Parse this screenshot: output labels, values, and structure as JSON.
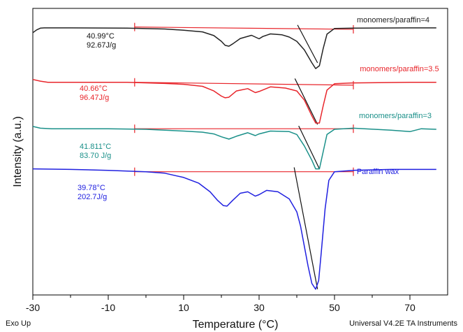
{
  "chart_data": {
    "type": "line",
    "title": "",
    "xlabel": "Temperature (°C)",
    "ylabel": "Intensity (a.u.)",
    "xlim": [
      -30,
      80
    ],
    "x_ticks": [
      -30,
      -10,
      10,
      30,
      50,
      70
    ],
    "grid": false,
    "legend": "labels placed next to each curve",
    "footer_left": "Exo Up",
    "footer_right": "Universal V4.2E TA Instruments",
    "series": [
      {
        "name": "monomers/paraffin=4",
        "color": "#222222",
        "baseline_color": "#e8252b",
        "annotation": {
          "temp": "40.99°C",
          "enthalpy": "92.67J/g",
          "temp_color": "#111111",
          "enthalpy_color": "#111111"
        },
        "points": [
          [
            -30,
            0.915
          ],
          [
            -29,
            0.925
          ],
          [
            -28,
            0.931
          ],
          [
            -27,
            0.932
          ],
          [
            -20,
            0.932
          ],
          [
            -5,
            0.931
          ],
          [
            5,
            0.928
          ],
          [
            10,
            0.924
          ],
          [
            15,
            0.918
          ],
          [
            18,
            0.905
          ],
          [
            20,
            0.885
          ],
          [
            21,
            0.871
          ],
          [
            22,
            0.868
          ],
          [
            23,
            0.876
          ],
          [
            25,
            0.895
          ],
          [
            28,
            0.906
          ],
          [
            30,
            0.894
          ],
          [
            31,
            0.902
          ],
          [
            33,
            0.911
          ],
          [
            36,
            0.908
          ],
          [
            38,
            0.9
          ],
          [
            40,
            0.885
          ],
          [
            42,
            0.855
          ],
          [
            44,
            0.81
          ],
          [
            45,
            0.79
          ],
          [
            46,
            0.8
          ],
          [
            47,
            0.86
          ],
          [
            48,
            0.91
          ],
          [
            50,
            0.93
          ],
          [
            55,
            0.931
          ],
          [
            70,
            0.932
          ],
          [
            77,
            0.932
          ]
        ],
        "baseline_points": [
          [
            -3,
            0.935
          ],
          [
            55,
            0.927
          ]
        ],
        "tangent_points": [
          [
            40.2,
            0.942
          ],
          [
            45.5,
            0.81
          ]
        ]
      },
      {
        "name": "monomers/paraffin=3.5",
        "color": "#e8252b",
        "baseline_color": "#e8252b",
        "annotation": {
          "temp": "40.66°C",
          "enthalpy": "96.47J/g",
          "temp_color": "#e8252b",
          "enthalpy_color": "#e8252b"
        },
        "points": [
          [
            -30,
            0.752
          ],
          [
            -28,
            0.746
          ],
          [
            -26,
            0.742
          ],
          [
            -20,
            0.742
          ],
          [
            -5,
            0.742
          ],
          [
            5,
            0.738
          ],
          [
            10,
            0.735
          ],
          [
            15,
            0.728
          ],
          [
            18,
            0.712
          ],
          [
            20,
            0.694
          ],
          [
            21,
            0.688
          ],
          [
            22,
            0.69
          ],
          [
            24,
            0.712
          ],
          [
            27,
            0.72
          ],
          [
            29,
            0.706
          ],
          [
            30,
            0.71
          ],
          [
            33,
            0.726
          ],
          [
            37,
            0.722
          ],
          [
            40,
            0.712
          ],
          [
            42,
            0.68
          ],
          [
            44,
            0.625
          ],
          [
            45,
            0.6
          ],
          [
            46,
            0.6
          ],
          [
            47,
            0.66
          ],
          [
            48,
            0.715
          ],
          [
            50,
            0.737
          ],
          [
            55,
            0.74
          ],
          [
            70,
            0.742
          ],
          [
            77,
            0.742
          ]
        ],
        "baseline_points": [
          [
            -3,
            0.742
          ],
          [
            55,
            0.732
          ]
        ],
        "tangent_points": [
          [
            39.5,
            0.755
          ],
          [
            45.5,
            0.595
          ]
        ]
      },
      {
        "name": "monomers/paraffin=3",
        "color": "#1a9089",
        "baseline_color": "#e8252b",
        "annotation": {
          "temp": "41.811°C",
          "enthalpy": "83.70 J/g",
          "temp_color": "#1a9089",
          "enthalpy_color": "#1a9089"
        },
        "points": [
          [
            -30,
            0.588
          ],
          [
            -28,
            0.582
          ],
          [
            -25,
            0.58
          ],
          [
            -10,
            0.58
          ],
          [
            0,
            0.578
          ],
          [
            10,
            0.572
          ],
          [
            15,
            0.568
          ],
          [
            18,
            0.562
          ],
          [
            20,
            0.552
          ],
          [
            22,
            0.544
          ],
          [
            24,
            0.554
          ],
          [
            27,
            0.566
          ],
          [
            29,
            0.556
          ],
          [
            30,
            0.562
          ],
          [
            33,
            0.572
          ],
          [
            38,
            0.57
          ],
          [
            40,
            0.56
          ],
          [
            42,
            0.52
          ],
          [
            44,
            0.47
          ],
          [
            45,
            0.44
          ],
          [
            46,
            0.44
          ],
          [
            47,
            0.5
          ],
          [
            48,
            0.56
          ],
          [
            50,
            0.578
          ],
          [
            55,
            0.582
          ],
          [
            65,
            0.575
          ],
          [
            70,
            0.57
          ],
          [
            73,
            0.58
          ],
          [
            77,
            0.578
          ]
        ],
        "baseline_points": [
          [
            -3,
            0.58
          ],
          [
            55,
            0.58
          ]
        ],
        "tangent_points": [
          [
            40.5,
            0.59
          ],
          [
            46,
            0.44
          ]
        ]
      },
      {
        "name": "Paraffin wax",
        "color": "#2020e0",
        "baseline_color": "#e8252b",
        "annotation": {
          "temp": "39.78°C",
          "enthalpy": "202.7J/g",
          "temp_color": "#2020e0",
          "enthalpy_color": "#2020e0"
        },
        "points": [
          [
            -30,
            0.44
          ],
          [
            -20,
            0.438
          ],
          [
            -10,
            0.435
          ],
          [
            0,
            0.43
          ],
          [
            5,
            0.425
          ],
          [
            10,
            0.41
          ],
          [
            14,
            0.39
          ],
          [
            17,
            0.36
          ],
          [
            19,
            0.33
          ],
          [
            20.5,
            0.312
          ],
          [
            21.5,
            0.31
          ],
          [
            23,
            0.33
          ],
          [
            25,
            0.355
          ],
          [
            27,
            0.36
          ],
          [
            29,
            0.345
          ],
          [
            30,
            0.35
          ],
          [
            32,
            0.365
          ],
          [
            35,
            0.36
          ],
          [
            38,
            0.335
          ],
          [
            40,
            0.29
          ],
          [
            41,
            0.24
          ],
          [
            42,
            0.17
          ],
          [
            43,
            0.1
          ],
          [
            44,
            0.04
          ],
          [
            45,
            0.02
          ],
          [
            45.8,
            0.05
          ],
          [
            46.5,
            0.15
          ],
          [
            47.5,
            0.3
          ],
          [
            48.5,
            0.4
          ],
          [
            50,
            0.43
          ],
          [
            55,
            0.435
          ],
          [
            65,
            0.438
          ],
          [
            77,
            0.438
          ]
        ],
        "baseline_points": [
          [
            -3,
            0.43
          ],
          [
            55,
            0.43
          ]
        ],
        "tangent_points": [
          [
            39.3,
            0.445
          ],
          [
            45.5,
            0.02
          ]
        ]
      }
    ]
  }
}
